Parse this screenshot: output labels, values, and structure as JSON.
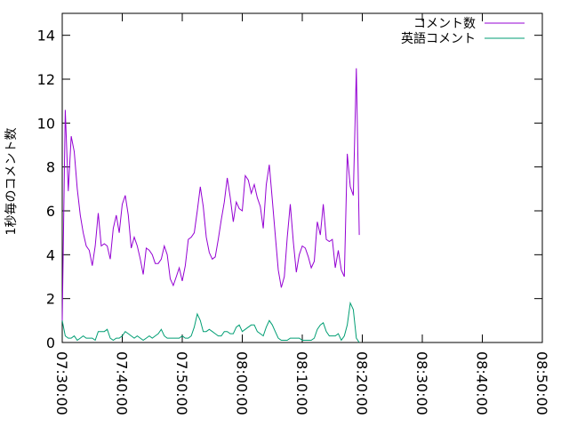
{
  "chart_data": {
    "type": "line",
    "title": "",
    "xlabel": "",
    "ylabel": "1秒毎のコメント数",
    "xlim": [
      "07:30:00",
      "08:50:00"
    ],
    "ylim": [
      0,
      15
    ],
    "x_ticks": [
      "07:30:00",
      "07:40:00",
      "07:50:00",
      "08:00:00",
      "08:10:00",
      "08:20:00",
      "08:30:00",
      "08:40:00",
      "08:50:00"
    ],
    "y_ticks": [
      0,
      2,
      4,
      6,
      8,
      10,
      12,
      14
    ],
    "grid": false,
    "legend_position": "top-right",
    "x_start": "07:30:00",
    "x_step_seconds": 30,
    "series": [
      {
        "name": "コメント数",
        "color": "#9400d3",
        "values": [
          1.0,
          10.6,
          6.9,
          9.4,
          8.7,
          7.0,
          5.8,
          5.0,
          4.4,
          4.2,
          3.5,
          4.4,
          5.9,
          4.4,
          4.5,
          4.4,
          3.8,
          5.2,
          5.8,
          5.0,
          6.3,
          6.7,
          5.8,
          4.3,
          4.8,
          4.4,
          3.8,
          3.1,
          4.3,
          4.2,
          4.0,
          3.6,
          3.6,
          3.8,
          4.4,
          4.0,
          2.9,
          2.6,
          3.0,
          3.4,
          2.8,
          3.5,
          4.7,
          4.8,
          5.0,
          6.0,
          7.1,
          6.2,
          4.8,
          4.1,
          3.8,
          3.9,
          4.7,
          5.6,
          6.4,
          7.5,
          6.6,
          5.5,
          6.4,
          6.1,
          6.0,
          7.6,
          7.4,
          6.8,
          7.2,
          6.6,
          6.2,
          5.2,
          7.2,
          8.1,
          6.5,
          4.9,
          3.3,
          2.5,
          3.0,
          4.8,
          6.3,
          4.6,
          3.2,
          4.0,
          4.4,
          4.3,
          3.9,
          3.4,
          3.7,
          5.5,
          4.9,
          6.3,
          4.7,
          4.6,
          4.7,
          3.4,
          4.2,
          3.3,
          3.0,
          8.6,
          7.1,
          6.7,
          12.5,
          4.9
        ]
      },
      {
        "name": "英語コメント",
        "color": "#009e73",
        "values": [
          1.0,
          0.3,
          0.2,
          0.2,
          0.3,
          0.1,
          0.2,
          0.3,
          0.2,
          0.2,
          0.2,
          0.1,
          0.5,
          0.5,
          0.5,
          0.6,
          0.2,
          0.1,
          0.2,
          0.2,
          0.3,
          0.5,
          0.4,
          0.3,
          0.2,
          0.3,
          0.2,
          0.1,
          0.2,
          0.3,
          0.2,
          0.3,
          0.4,
          0.6,
          0.3,
          0.2,
          0.2,
          0.2,
          0.2,
          0.2,
          0.3,
          0.2,
          0.2,
          0.3,
          0.7,
          1.3,
          1.0,
          0.5,
          0.5,
          0.6,
          0.5,
          0.4,
          0.3,
          0.3,
          0.5,
          0.5,
          0.4,
          0.4,
          0.7,
          0.8,
          0.5,
          0.6,
          0.7,
          0.8,
          0.8,
          0.5,
          0.4,
          0.3,
          0.7,
          1.0,
          0.8,
          0.5,
          0.2,
          0.1,
          0.1,
          0.1,
          0.2,
          0.2,
          0.2,
          0.2,
          0.1,
          0.1,
          0.1,
          0.1,
          0.2,
          0.6,
          0.8,
          0.9,
          0.5,
          0.3,
          0.3,
          0.3,
          0.4,
          0.1,
          0.3,
          0.8,
          1.8,
          1.5,
          0.2,
          0.0
        ]
      }
    ]
  }
}
